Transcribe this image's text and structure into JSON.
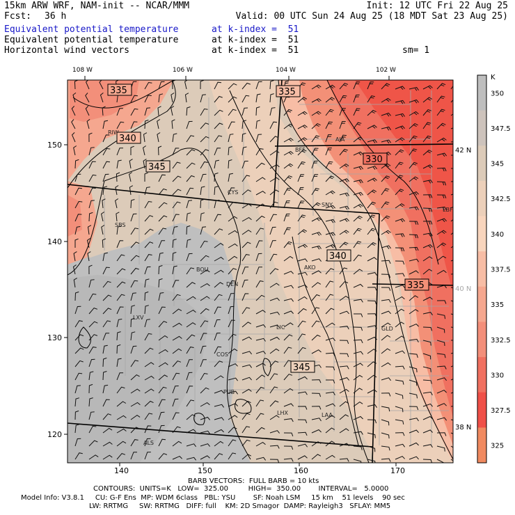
{
  "header": {
    "model_line": "15km ARW WRF, NAM-init -- NCAR/MMM",
    "init_line": "Init: 12 UTC Fri 22 Aug 25",
    "fcst_label": "Fcst:",
    "fcst_value": "36 h",
    "valid_line": "Valid: 00 UTC Sun 24 Aug 25 (18 MDT Sat 23 Aug 25)",
    "fields": [
      {
        "name": "Equivalent potential temperature",
        "level": "at k-index =  51",
        "color": "#1818c8"
      },
      {
        "name": "Equivalent potential temperature",
        "level": "at k-index =  51",
        "color": "#000000"
      },
      {
        "name": "Horizontal wind vectors",
        "level": "at k-index =  51",
        "color": "#000000"
      }
    ],
    "smoothing": "sm= 1"
  },
  "map": {
    "top_longitudes": [
      "108 W",
      "106 W",
      "104 W",
      "102 W"
    ],
    "right_latitudes": [
      {
        "label": "42 N",
        "color": "#000000"
      },
      {
        "label": "40 N",
        "color": "#a8a8a8"
      },
      {
        "label": "38 N",
        "color": "#000000"
      }
    ],
    "left_ticks": [
      "150",
      "140",
      "130",
      "120"
    ],
    "bottom_ticks": [
      "140",
      "150",
      "160",
      "170"
    ],
    "station_labels": [
      "RIW",
      "BFF",
      "AIA",
      "CYS",
      "SNY",
      "LBF",
      "SBS",
      "BOU",
      "AKO",
      "DEN",
      "LXV",
      "LIC",
      "GLD",
      "COS",
      "PUB",
      "LHX",
      "LAA",
      "ALS"
    ],
    "contour_labels": [
      "335",
      "340",
      "345",
      "335",
      "330",
      "340",
      "335",
      "345"
    ]
  },
  "colorbar": {
    "unit": "K",
    "levels": [
      "350",
      "347.5",
      "345",
      "342.5",
      "340",
      "337.5",
      "335",
      "332.5",
      "330",
      "327.5",
      "325"
    ],
    "colors": [
      "#bebebe",
      "#cdc3bc",
      "#dccbb9",
      "#ecd0ba",
      "#f8d5bd",
      "#f7bda5",
      "#f5a78f",
      "#f38f7a",
      "#f07060",
      "#ef5048",
      "#f08a60"
    ]
  },
  "footer": {
    "barb_line": "BARB VECTORS:  FULL BARB = 10 kts",
    "contour_line": "CONTOURS:  UNITS=K   LOW=  325.00         HIGH=  350.00        INTERVAL=   5.0000",
    "model_info_line": "Model Info: V3.8.1     CU: G-F Ens  MP: WDM 6class   PBL: YSU        SF: Noah LSM     15 km    51 levels    90 sec",
    "physics_line": "LW: RRTMG     SW: RRTMG   DIFF: full    KM: 2D Smagor  DAMP: Rayleigh3   SFLAY: MM5"
  }
}
